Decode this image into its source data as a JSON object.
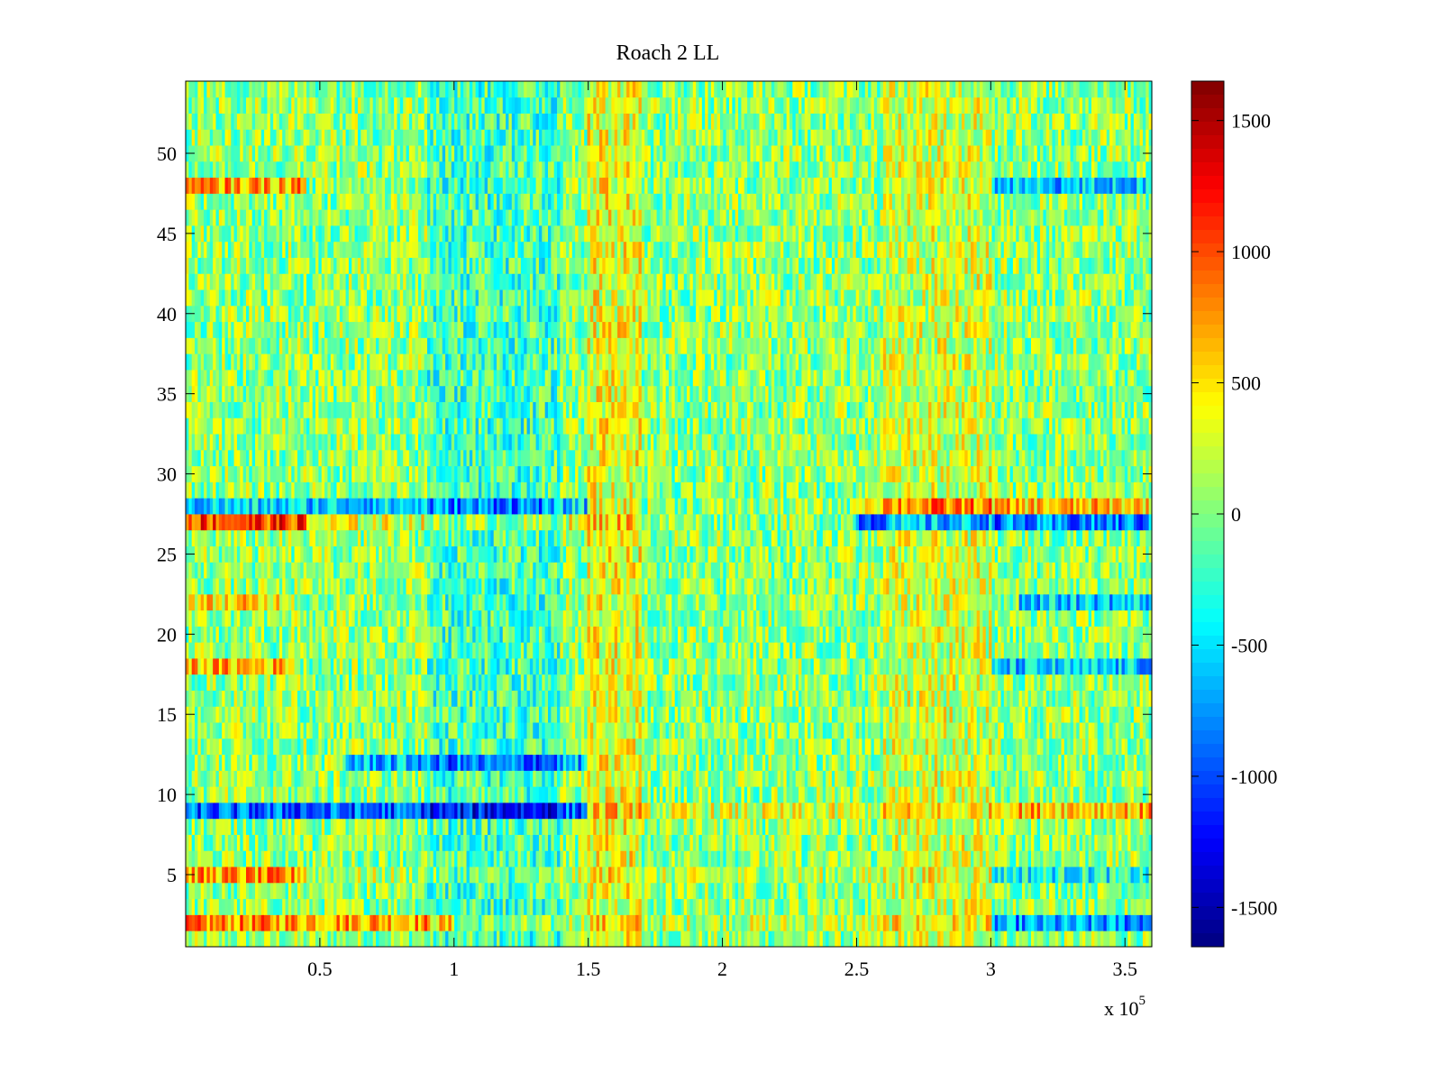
{
  "chart_data": {
    "type": "heatmap",
    "title": "Roach 2 LL",
    "xlabel": "",
    "ylabel": "",
    "x_exponent_label": "x 10",
    "x_exponent_power": "5",
    "xlim": [
      0,
      3.6
    ],
    "ylim": [
      0.5,
      54.5
    ],
    "x_ticks": [
      0.5,
      1,
      1.5,
      2,
      2.5,
      3,
      3.5
    ],
    "x_tick_labels": [
      "0.5",
      "1",
      "1.5",
      "2",
      "2.5",
      "3",
      "3.5"
    ],
    "y_ticks": [
      5,
      10,
      15,
      20,
      25,
      30,
      35,
      40,
      45,
      50
    ],
    "y_tick_labels": [
      "5",
      "10",
      "15",
      "20",
      "25",
      "30",
      "35",
      "40",
      "45",
      "50"
    ],
    "rows": 54,
    "colorbar": {
      "colormap": "jet",
      "clim": [
        -1650,
        1650
      ],
      "ticks": [
        1500,
        1000,
        500,
        0,
        -500,
        -1000,
        -1500
      ],
      "tick_labels": [
        "1500",
        "1000",
        "500",
        "0",
        "-500",
        "-1000",
        "-1500"
      ]
    },
    "row_bias": [
      {
        "row": 2,
        "segments": [
          [
            0,
            1.0,
            700
          ],
          [
            1.0,
            3.0,
            150
          ],
          [
            3.0,
            3.6,
            -800
          ]
        ]
      },
      {
        "row": 5,
        "segments": [
          [
            0,
            0.45,
            650
          ],
          [
            0.45,
            3.0,
            100
          ],
          [
            3.0,
            3.6,
            -400
          ]
        ]
      },
      {
        "row": 9,
        "segments": [
          [
            0,
            1.5,
            -1000
          ],
          [
            1.5,
            3.0,
            200
          ],
          [
            3.0,
            3.6,
            600
          ]
        ]
      },
      {
        "row": 12,
        "segments": [
          [
            0.6,
            1.5,
            -700
          ]
        ]
      },
      {
        "row": 18,
        "segments": [
          [
            0,
            0.4,
            600
          ],
          [
            3.0,
            3.6,
            -650
          ]
        ]
      },
      {
        "row": 22,
        "segments": [
          [
            0,
            0.4,
            450
          ],
          [
            3.1,
            3.6,
            -600
          ]
        ]
      },
      {
        "row": 27,
        "segments": [
          [
            0,
            0.45,
            1000
          ],
          [
            0.45,
            1.7,
            250
          ],
          [
            2.5,
            3.6,
            -900
          ]
        ]
      },
      {
        "row": 28,
        "segments": [
          [
            0,
            1.5,
            -600
          ],
          [
            2.5,
            3.6,
            550
          ]
        ]
      },
      {
        "row": 48,
        "segments": [
          [
            0,
            0.45,
            650
          ],
          [
            3.0,
            3.6,
            -650
          ]
        ]
      }
    ],
    "column_bias": [
      {
        "x_range": [
          1.5,
          1.7
        ],
        "value": 300
      },
      {
        "x_range": [
          0.9,
          1.4
        ],
        "value": -250
      },
      {
        "x_range": [
          2.6,
          3.0
        ],
        "value": 200
      }
    ]
  }
}
